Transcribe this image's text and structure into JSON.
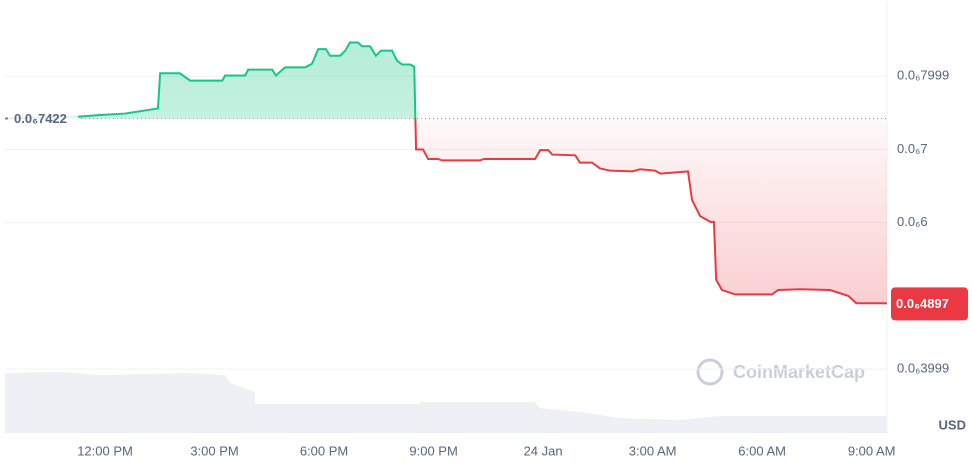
{
  "chart_data": {
    "type": "area",
    "x": [
      9.26,
      11.32,
      11.86,
      12.55,
      13.45,
      13.51,
      14.05,
      14.33,
      15.21,
      15.29,
      15.84,
      15.92,
      16.58,
      16.68,
      16.93,
      17.48,
      17.67,
      17.84,
      18.05,
      18.16,
      18.44,
      18.58,
      18.71,
      18.93,
      19.04,
      19.26,
      19.42,
      19.56,
      19.86,
      20.0,
      20.14,
      20.36,
      20.47,
      20.52,
      20.71,
      20.85,
      21.12,
      21.23,
      22.27,
      22.38,
      23.78,
      23.92,
      24.14,
      24.25,
      24.88,
      25.01,
      25.34,
      25.56,
      25.84,
      26.44,
      26.66,
      27.07,
      27.21,
      27.97,
      28.08,
      28.3,
      28.58,
      28.68,
      28.74,
      28.9,
      29.26,
      30.27,
      30.44,
      31.04,
      31.86,
      32.36,
      32.58,
      33.23,
      33.42
    ],
    "values": [
      7.422e-07,
      7.45e-07,
      7.47e-07,
      7.49e-07,
      7.56e-07,
      8.04e-07,
      8.04e-07,
      7.94e-07,
      7.94e-07,
      8.01e-07,
      8.01e-07,
      8.09e-07,
      8.09e-07,
      8.01e-07,
      8.12e-07,
      8.12e-07,
      8.17e-07,
      8.37e-07,
      8.37e-07,
      8.28e-07,
      8.28e-07,
      8.35e-07,
      8.46e-07,
      8.46e-07,
      8.41e-07,
      8.41e-07,
      8.28e-07,
      8.35e-07,
      8.35e-07,
      8.21e-07,
      8.16e-07,
      8.16e-07,
      8.13e-07,
      7e-07,
      7e-07,
      6.87e-07,
      6.87e-07,
      6.85e-07,
      6.85e-07,
      6.87e-07,
      6.87e-07,
      6.99e-07,
      6.99e-07,
      6.93e-07,
      6.92e-07,
      6.82e-07,
      6.82e-07,
      6.74e-07,
      6.71e-07,
      6.7e-07,
      6.73e-07,
      6.71e-07,
      6.67e-07,
      6.7e-07,
      6.31e-07,
      6.09e-07,
      6.01e-07,
      6.01e-07,
      5.22e-07,
      5.08e-07,
      5.02e-07,
      5.02e-07,
      5.08e-07,
      5.09e-07,
      5.08e-07,
      5e-07,
      4.9e-07,
      4.9e-07,
      4.897e-07
    ],
    "up_color": "#16c784",
    "down_color": "#ea3943",
    "reference": {
      "value": 7.422e-07,
      "label": "0.0₆7422"
    },
    "current": {
      "value": 4.897e-07,
      "label": "0.0₆4897"
    },
    "xlim": [
      9.26,
      33.42
    ],
    "ylim": [
      3.1e-07,
      9e-07
    ],
    "xticks": [
      {
        "value": 12,
        "label": "12:00 PM"
      },
      {
        "value": 15,
        "label": "3:00 PM"
      },
      {
        "value": 18,
        "label": "6:00 PM"
      },
      {
        "value": 21,
        "label": "9:00 PM"
      },
      {
        "value": 24,
        "label": "24 Jan"
      },
      {
        "value": 27,
        "label": "3:00 AM"
      },
      {
        "value": 30,
        "label": "6:00 AM"
      },
      {
        "value": 33,
        "label": "9:00 AM"
      }
    ],
    "yticks": [
      {
        "value": 7.999e-07,
        "label": "0.0₆7999"
      },
      {
        "value": 7e-07,
        "label": "0.0₆7"
      },
      {
        "value": 6e-07,
        "label": "0.0₆6"
      },
      {
        "value": 3.999e-07,
        "label": "0.0₆3999"
      }
    ],
    "grid": true,
    "currency": "USD",
    "watermark": "CoinMarketCap"
  }
}
